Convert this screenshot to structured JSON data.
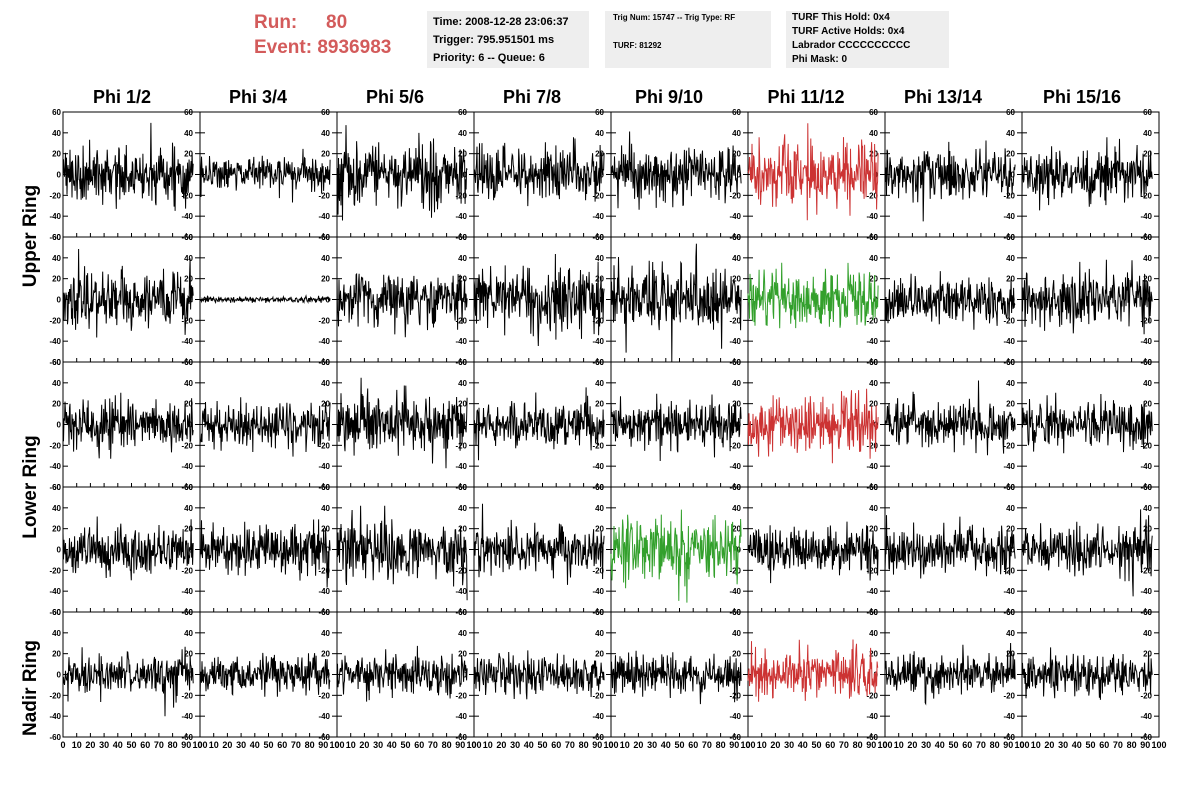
{
  "header": {
    "run_label": "Run:",
    "run_value": "80",
    "event_label": "Event:",
    "event_value": "8936983"
  },
  "info_boxes": [
    [
      "Time: 2008-12-28 23:06:37",
      "Trigger: 795.951501 ms",
      "Priority: 6 -- Queue: 6"
    ],
    [
      "Trig Num: 15747 -- Trig Type: RF",
      "TURF: 81292"
    ],
    [
      "TURF This Hold: 0x4",
      "TURF Active Holds: 0x4",
      "Labrador CCCCCCCCCC",
      "Phi Mask: 0"
    ]
  ],
  "column_titles": [
    "Phi 1/2",
    "Phi 3/4",
    "Phi 5/6",
    "Phi 7/8",
    "Phi 9/10",
    "Phi 11/12",
    "Phi 13/14",
    "Phi 15/16"
  ],
  "ring_labels": [
    "Upper Ring",
    "Lower Ring",
    "Nadir Ring"
  ],
  "colors": {
    "normal": "#000000",
    "triggered": "#cc3333",
    "active": "#33a02c",
    "header_red": "#d35b5b",
    "info_bg": "#eeeeee"
  },
  "chart_data": {
    "type": "line",
    "ylim": [
      -60,
      60
    ],
    "xlim": [
      0,
      100
    ],
    "y_ticks": [
      "-60",
      "-40",
      "-20",
      "0",
      "20",
      "40",
      "60"
    ],
    "x_ticks": [
      "0",
      "10",
      "20",
      "30",
      "40",
      "50",
      "60",
      "70",
      "80",
      "90",
      "100"
    ],
    "rows": 5,
    "cols": 8,
    "panel_color": [
      [
        "normal",
        "normal",
        "normal",
        "normal",
        "normal",
        "triggered",
        "normal",
        "normal"
      ],
      [
        "normal",
        "normal",
        "normal",
        "normal",
        "normal",
        "active",
        "normal",
        "normal"
      ],
      [
        "normal",
        "normal",
        "normal",
        "normal",
        "normal",
        "triggered",
        "normal",
        "normal"
      ],
      [
        "normal",
        "normal",
        "normal",
        "normal",
        "active",
        "normal",
        "normal",
        "normal"
      ],
      [
        "normal",
        "normal",
        "normal",
        "normal",
        "normal",
        "triggered",
        "normal",
        "normal"
      ]
    ],
    "panel_amplitude": [
      [
        20,
        12,
        22,
        18,
        18,
        22,
        18,
        18
      ],
      [
        20,
        2,
        18,
        22,
        24,
        20,
        16,
        20
      ],
      [
        18,
        16,
        20,
        16,
        16,
        20,
        16,
        16
      ],
      [
        16,
        18,
        20,
        16,
        22,
        16,
        16,
        18
      ],
      [
        14,
        12,
        14,
        14,
        14,
        16,
        14,
        14
      ]
    ],
    "samples_per_panel": 260,
    "x_range": [
      0,
      95
    ]
  }
}
